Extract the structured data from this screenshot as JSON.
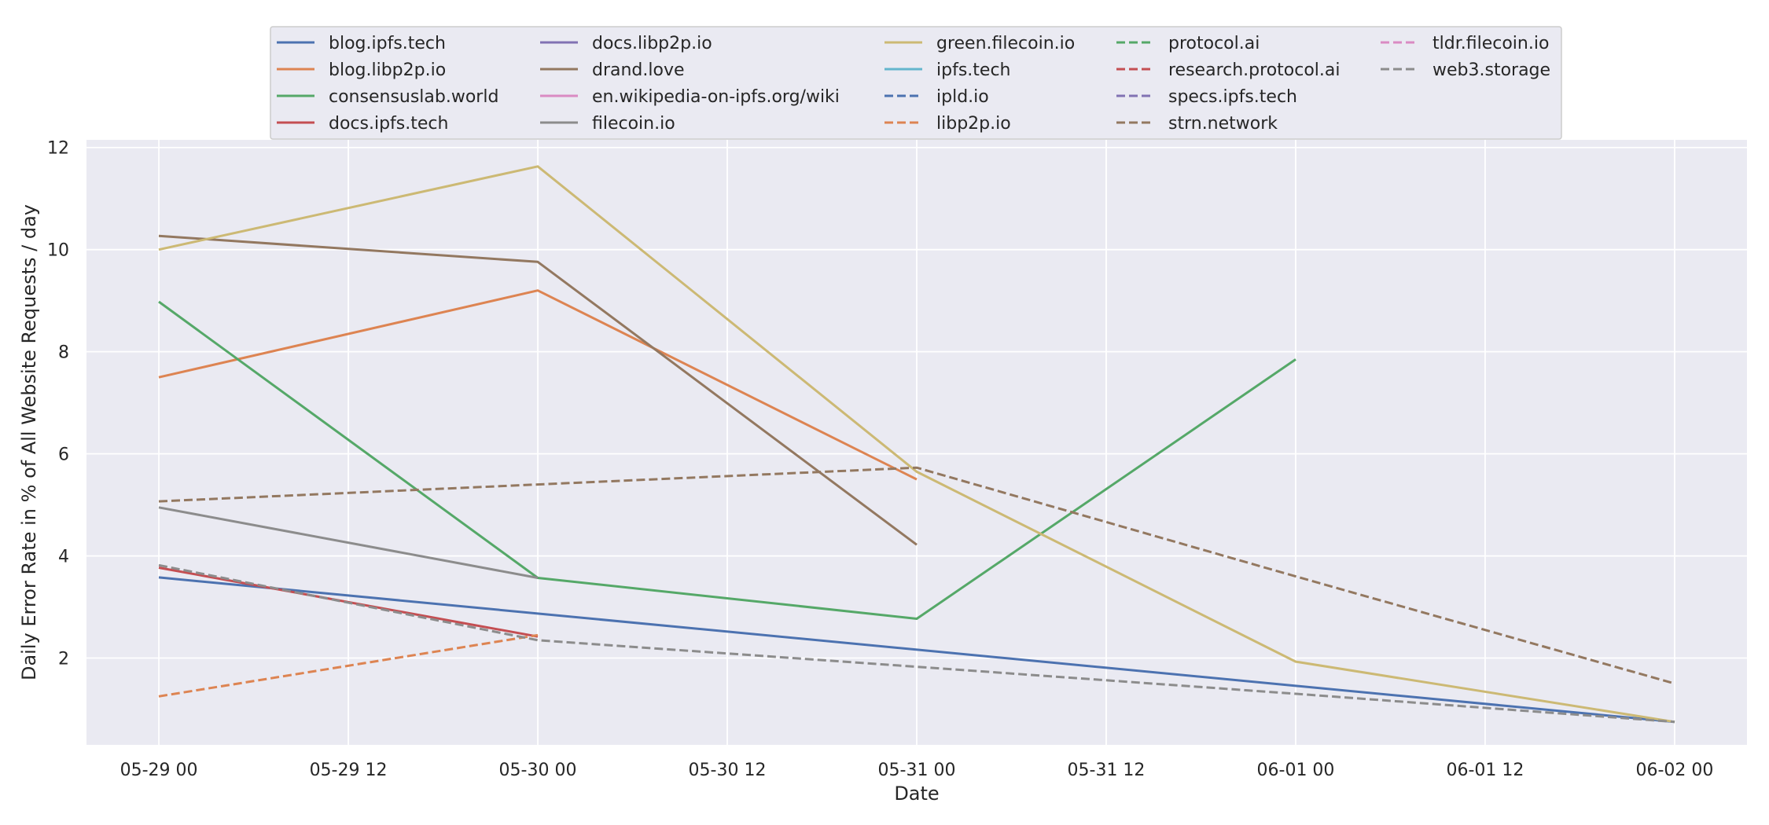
{
  "chart_data": {
    "type": "line",
    "title": "",
    "xlabel": "Date",
    "ylabel": "Daily Error Rate in % of All Website Requests / day",
    "x_ticks": [
      "05-29 00",
      "05-29 12",
      "05-30 00",
      "05-30 12",
      "05-31 00",
      "05-31 12",
      "06-01 00",
      "06-01 12",
      "06-02 00"
    ],
    "y_ticks": [
      2,
      4,
      6,
      8,
      10,
      12
    ],
    "xlim": [
      "05-28 19:25",
      "06-02 04:35"
    ],
    "ylim": [
      0.3,
      12.15
    ],
    "grid": true,
    "legend_position": "top-center",
    "legend_columns": 5,
    "colors": {
      "background": "#eaeaf2",
      "grid": "#ffffff",
      "text": "#262626"
    },
    "series": [
      {
        "name": "blog.ipfs.tech",
        "color": "#4c72b0",
        "dash": "solid",
        "points": [
          [
            "05-29 00",
            3.58
          ],
          [
            "06-02 00",
            0.75
          ]
        ]
      },
      {
        "name": "blog.libp2p.io",
        "color": "#dd8452",
        "dash": "solid",
        "points": [
          [
            "05-29 00",
            7.5
          ],
          [
            "05-30 00",
            9.2
          ],
          [
            "05-31 00",
            5.5
          ]
        ]
      },
      {
        "name": "consensuslab.world",
        "color": "#55a868",
        "dash": "solid",
        "points": [
          [
            "05-29 00",
            8.98
          ],
          [
            "05-30 00",
            3.57
          ],
          [
            "05-31 00",
            2.77
          ],
          [
            "06-01 00",
            7.85
          ]
        ]
      },
      {
        "name": "docs.ipfs.tech",
        "color": "#c44e52",
        "dash": "solid",
        "points": [
          [
            "05-29 00",
            3.77
          ],
          [
            "05-30 00",
            2.42
          ]
        ]
      },
      {
        "name": "docs.libp2p.io",
        "color": "#8172b3",
        "dash": "solid",
        "points": []
      },
      {
        "name": "drand.love",
        "color": "#937860",
        "dash": "solid",
        "points": [
          [
            "05-29 00",
            10.27
          ],
          [
            "05-30 00",
            9.76
          ],
          [
            "05-31 00",
            4.22
          ]
        ]
      },
      {
        "name": "en.wikipedia-on-ipfs.org/wiki",
        "color": "#da8bc3",
        "dash": "solid",
        "points": []
      },
      {
        "name": "filecoin.io",
        "color": "#8c8c8c",
        "dash": "solid",
        "points": [
          [
            "05-29 00",
            4.95
          ],
          [
            "05-30 00",
            3.57
          ]
        ]
      },
      {
        "name": "green.filecoin.io",
        "color": "#ccb974",
        "dash": "solid",
        "points": [
          [
            "05-29 00",
            10.0
          ],
          [
            "05-30 00",
            11.63
          ],
          [
            "05-31 00",
            5.65
          ],
          [
            "06-01 00",
            1.93
          ],
          [
            "06-02 00",
            0.75
          ]
        ]
      },
      {
        "name": "ipfs.tech",
        "color": "#64b5cd",
        "dash": "solid",
        "points": []
      },
      {
        "name": "ipld.io",
        "color": "#4c72b0",
        "dash": "dashed",
        "points": []
      },
      {
        "name": "libp2p.io",
        "color": "#dd8452",
        "dash": "dashed",
        "points": [
          [
            "05-29 00",
            1.25
          ],
          [
            "05-30 00",
            2.45
          ]
        ]
      },
      {
        "name": "protocol.ai",
        "color": "#55a868",
        "dash": "dashed",
        "points": []
      },
      {
        "name": "research.protocol.ai",
        "color": "#c44e52",
        "dash": "dashed",
        "points": []
      },
      {
        "name": "specs.ipfs.tech",
        "color": "#8172b3",
        "dash": "dashed",
        "points": []
      },
      {
        "name": "strn.network",
        "color": "#937860",
        "dash": "dashed",
        "points": [
          [
            "05-29 00",
            5.07
          ],
          [
            "05-30 00",
            5.4
          ],
          [
            "05-31 00",
            5.73
          ],
          [
            "06-01 00",
            3.6
          ],
          [
            "06-02 00",
            1.5
          ]
        ]
      },
      {
        "name": "tldr.filecoin.io",
        "color": "#da8bc3",
        "dash": "dashed",
        "points": []
      },
      {
        "name": "web3.storage",
        "color": "#8c8c8c",
        "dash": "dashed",
        "points": [
          [
            "05-29 00",
            3.82
          ],
          [
            "05-30 00",
            2.35
          ],
          [
            "05-31 00",
            1.83
          ],
          [
            "06-01 00",
            1.3
          ],
          [
            "06-02 00",
            0.75
          ]
        ]
      }
    ]
  }
}
